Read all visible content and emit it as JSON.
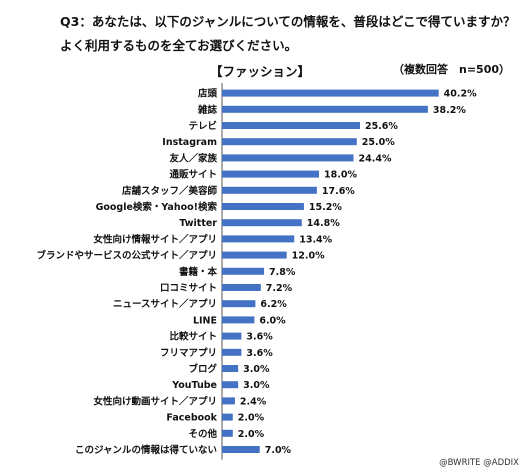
{
  "question": {
    "line1": "Q3：あなたは、以下のジャンルについての情報を、普段はどこで得ていますか？",
    "line2": "よく利用するものを全てお選びください。"
  },
  "chart_data": {
    "type": "bar",
    "orientation": "horizontal",
    "title": "Q3：あなたは、以下のジャンルについての情報を、普段はどこで得ていますか？ よく利用するものを全てお選びください。",
    "subtitle": "【ファッション】",
    "note": "（複数回答　n=500）",
    "categories": [
      "店頭",
      "雑誌",
      "テレビ",
      "Instagram",
      "友人／家族",
      "通販サイト",
      "店舗スタッフ／美容師",
      "Google検索・Yahoo!検索",
      "Twitter",
      "女性向け情報サイト／アプリ",
      "ブランドやサービスの公式サイト／アプリ",
      "書籍・本",
      "口コミサイト",
      "ニュースサイト／アプリ",
      "LINE",
      "比較サイト",
      "フリマアプリ",
      "ブログ",
      "YouTube",
      "女性向け動画サイト／アプリ",
      "Facebook",
      "その他",
      "このジャンルの情報は得ていない"
    ],
    "values": [
      40.2,
      38.2,
      25.6,
      25.0,
      24.4,
      18.0,
      17.6,
      15.2,
      14.8,
      13.4,
      12.0,
      7.8,
      7.2,
      6.2,
      6.0,
      3.6,
      3.6,
      3.0,
      3.0,
      2.4,
      2.0,
      2.0,
      7.0
    ],
    "value_labels": [
      "40.2%",
      "38.2%",
      "25.6%",
      "25.0%",
      "24.4%",
      "18.0%",
      "17.6%",
      "15.2%",
      "14.8%",
      "13.4%",
      "12.0%",
      "7.8%",
      "7.2%",
      "6.2%",
      "6.0%",
      "3.6%",
      "3.6%",
      "3.0%",
      "3.0%",
      "2.4%",
      "2.0%",
      "2.0%",
      "7.0%"
    ],
    "xlim": [
      0,
      45
    ],
    "grid": false,
    "legend": "none",
    "bar_color": "#4472c4"
  },
  "credit": "@BWRITE  @ADDIX"
}
